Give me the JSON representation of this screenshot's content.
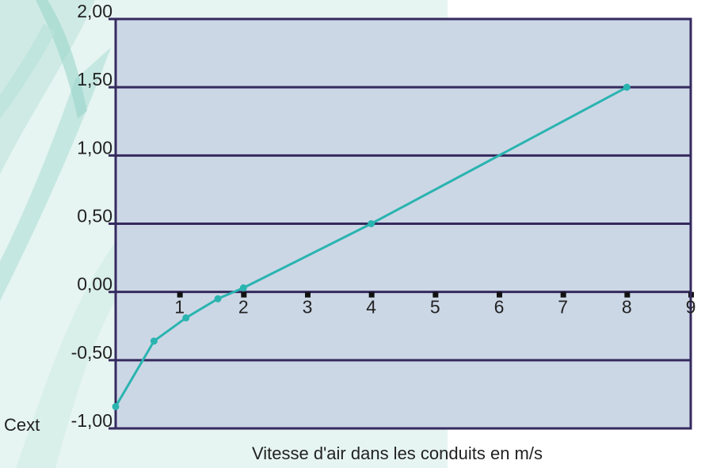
{
  "chart_data": {
    "type": "line",
    "xlabel": "Vitesse d'air dans les conduits en m/s",
    "ylabel": "Cext",
    "xlim": [
      0,
      9
    ],
    "ylim": [
      -1.0,
      2.0
    ],
    "x_ticks": [
      "1",
      "2",
      "3",
      "4",
      "5",
      "6",
      "7",
      "8",
      "9"
    ],
    "y_ticks": [
      "2,00",
      "1,50",
      "1,00",
      "0,50",
      "0,00",
      "-0,50",
      "-1,00"
    ],
    "y_tick_values": [
      2.0,
      1.5,
      1.0,
      0.5,
      0.0,
      -0.5,
      -1.0
    ],
    "grid": "horizontal",
    "series": [
      {
        "x": [
          0,
          0.6,
          1.1,
          1.6,
          2.0,
          4.0,
          8.0
        ],
        "y": [
          -0.84,
          -0.36,
          -0.19,
          -0.05,
          0.03,
          0.5,
          1.5
        ]
      }
    ]
  },
  "colors": {
    "plot_bg": "#ccd7e6",
    "frame": "#352a5e",
    "line": "#2ab4b0",
    "decor_light": "#e3f3ef",
    "decor_dark": "#8fd0c6"
  }
}
